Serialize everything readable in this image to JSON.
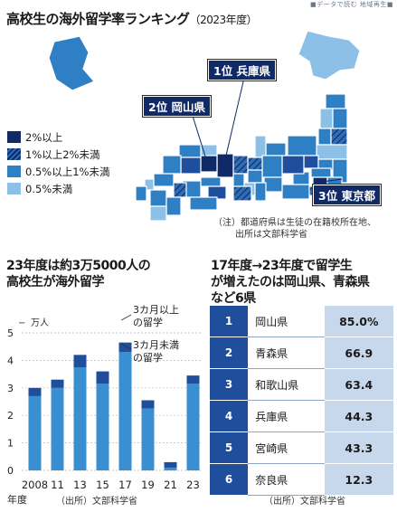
{
  "header": {
    "tag": "■データで読む 地域再生■",
    "title": "高校生の海外留学率ランキング",
    "year_note": "（2023年度）"
  },
  "map": {
    "legend": [
      {
        "label": "2%以上",
        "color": "#0f2a66",
        "pattern": "solid"
      },
      {
        "label": "1%以上2%未満",
        "color": "#1f4f9c",
        "pattern": "hatch"
      },
      {
        "label": "0.5%以上1%未満",
        "color": "#2f7fc4",
        "pattern": "solid"
      },
      {
        "label": "0.5%未満",
        "color": "#8cc0e6",
        "pattern": "solid"
      }
    ],
    "callouts": [
      {
        "label": "1位 兵庫県"
      },
      {
        "label": "2位 岡山県"
      },
      {
        "label": "3位 東京都"
      }
    ],
    "note_line1": "（注）都道府県は生徒の在籍校所在地、",
    "note_line2": "出所は文部科学省"
  },
  "chart_data": [
    {
      "type": "bar",
      "title_line1": "23年度は約3万5000人の",
      "title_line2": "高校生が海外留学",
      "unit": "万人",
      "categories": [
        "2008",
        "11",
        "13",
        "15",
        "17",
        "19",
        "21",
        "23"
      ],
      "x_caption": "年度",
      "ylim": [
        0,
        5
      ],
      "yticks": [
        "0",
        "1",
        "2",
        "3",
        "4",
        "5"
      ],
      "series": [
        {
          "name": "3カ月未満の留学",
          "values": [
            2.7,
            3.0,
            3.75,
            3.15,
            4.3,
            2.25,
            0.1,
            3.15
          ]
        },
        {
          "name": "3カ月以上の留学",
          "values": [
            0.3,
            0.3,
            0.45,
            0.45,
            0.35,
            0.3,
            0.2,
            0.3
          ]
        }
      ],
      "legend_labels": [
        "3カ月以上",
        "の留学",
        "3カ月未満",
        "の留学"
      ],
      "source": "（出所）文部科学省",
      "colors": {
        "long": "#1f4f9c",
        "short": "#3a8fd0"
      }
    },
    {
      "type": "table",
      "title_line1": "17年度→23年度で留学生",
      "title_line2": "が増えたのは岡山県、青森県",
      "title_line3": "など6県",
      "rows": [
        {
          "rank": "1",
          "pref": "岡山県",
          "value": "85.0%"
        },
        {
          "rank": "2",
          "pref": "青森県",
          "value": "66.9"
        },
        {
          "rank": "3",
          "pref": "和歌山県",
          "value": "63.4"
        },
        {
          "rank": "4",
          "pref": "兵庫県",
          "value": "44.3"
        },
        {
          "rank": "5",
          "pref": "宮崎県",
          "value": "43.3"
        },
        {
          "rank": "6",
          "pref": "奈良県",
          "value": "12.3"
        }
      ],
      "source": "（出所）文部科学省"
    }
  ]
}
